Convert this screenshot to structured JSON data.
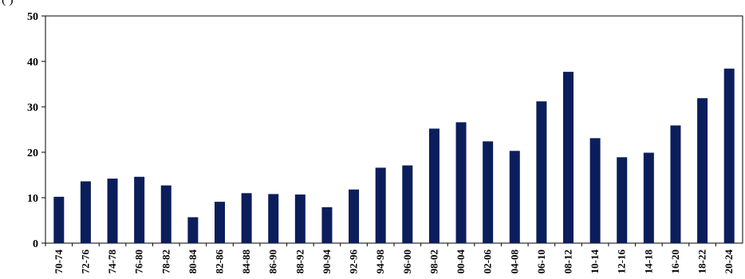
{
  "chart_data": {
    "type": "bar",
    "title": "",
    "header_fragment": "(                                          )",
    "xlabel": "",
    "ylabel": "",
    "ylim": [
      0,
      50
    ],
    "yticks": [
      0,
      10,
      20,
      30,
      40,
      50
    ],
    "grid": false,
    "bar_color": "#0B1E5B",
    "categories": [
      "70-74",
      "72-76",
      "74-78",
      "76-80",
      "78-82",
      "80-84",
      "82-86",
      "84-88",
      "86-90",
      "88-92",
      "90-94",
      "92-96",
      "94-98",
      "96-00",
      "98-02",
      "00-04",
      "02-06",
      "04-08",
      "06-10",
      "08-12",
      "10-14",
      "12-16",
      "14-18",
      "16-20",
      "18-22",
      "20-24"
    ],
    "values": [
      10.2,
      13.6,
      14.2,
      14.6,
      12.7,
      5.7,
      9.1,
      11.0,
      10.8,
      10.7,
      7.9,
      11.8,
      16.6,
      17.1,
      25.2,
      26.6,
      22.4,
      20.3,
      31.2,
      37.7,
      23.1,
      18.9,
      19.9,
      25.9,
      31.9,
      38.4
    ]
  }
}
